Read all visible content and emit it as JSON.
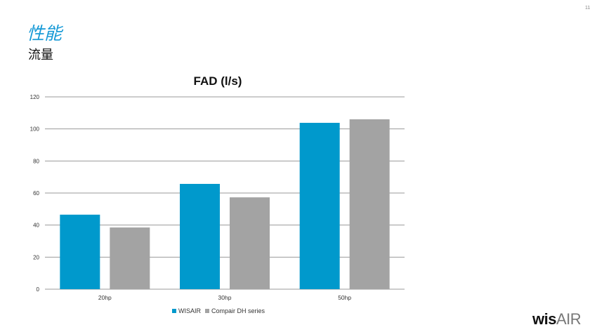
{
  "slide": {
    "page_number": "11",
    "title": "性能",
    "subtitle": "流量"
  },
  "chart_data": {
    "type": "bar",
    "title": "FAD (l/s)",
    "categories": [
      "20hp",
      "30hp",
      "50hp"
    ],
    "series": [
      {
        "name": "WISAIR",
        "values": [
          46.5,
          65.7,
          103.8
        ],
        "color": "#0099cc"
      },
      {
        "name": "Compair DH series",
        "values": [
          38.5,
          57.3,
          106.0
        ],
        "color": "#a3a3a3"
      }
    ],
    "ylim": [
      0,
      120
    ],
    "yticks": [
      0,
      20,
      40,
      60,
      80,
      100,
      120
    ],
    "grid": true,
    "legend": "bottom"
  },
  "logo": {
    "text_bold": "wis",
    "text_light": "AIR"
  }
}
